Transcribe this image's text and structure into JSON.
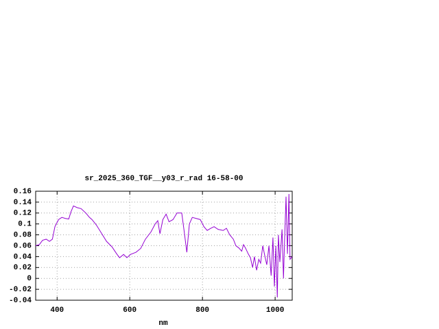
{
  "chart_data": {
    "type": "line",
    "title": "sr_2025_360_TGF__y03_r_rad 16-58-00",
    "x_label": "nm",
    "color": "#9400d3",
    "grid": true,
    "xlim": [
      341,
      1047
    ],
    "ylim": [
      -0.04,
      0.16
    ],
    "xticks": [
      400,
      600,
      800,
      1000
    ],
    "yticks": [
      -0.04,
      -0.02,
      0,
      0.02,
      0.04,
      0.06,
      0.08,
      0.1,
      0.12,
      0.14,
      0.16
    ],
    "x": [
      341,
      351,
      360,
      370,
      379,
      387,
      394,
      404,
      413,
      423,
      432,
      438,
      445,
      455,
      466,
      479,
      489,
      496,
      508,
      523,
      536,
      551,
      564,
      572,
      583,
      592,
      602,
      617,
      630,
      643,
      658,
      670,
      677,
      683,
      691,
      700,
      708,
      719,
      730,
      743,
      749,
      757,
      764,
      772,
      783,
      794,
      804,
      813,
      823,
      832,
      843,
      857,
      866,
      875,
      885,
      892,
      900,
      908,
      913,
      919,
      926,
      932,
      938,
      943,
      949,
      955,
      960,
      966,
      972,
      977,
      983,
      989,
      994,
      998,
      1002,
      1006,
      1009,
      1013,
      1019,
      1023,
      1026,
      1030,
      1034,
      1038,
      1041,
      1047
    ],
    "values": [
      0.06,
      0.062,
      0.07,
      0.072,
      0.068,
      0.072,
      0.095,
      0.108,
      0.112,
      0.11,
      0.109,
      0.122,
      0.133,
      0.13,
      0.128,
      0.12,
      0.112,
      0.108,
      0.098,
      0.082,
      0.068,
      0.058,
      0.045,
      0.038,
      0.044,
      0.038,
      0.044,
      0.048,
      0.055,
      0.072,
      0.085,
      0.1,
      0.106,
      0.082,
      0.108,
      0.118,
      0.104,
      0.108,
      0.12,
      0.12,
      0.09,
      0.048,
      0.1,
      0.112,
      0.11,
      0.108,
      0.095,
      0.088,
      0.092,
      0.095,
      0.09,
      0.088,
      0.092,
      0.08,
      0.072,
      0.06,
      0.056,
      0.05,
      0.062,
      0.055,
      0.045,
      0.038,
      0.02,
      0.04,
      0.015,
      0.035,
      0.028,
      0.06,
      0.04,
      0.025,
      0.06,
      0.005,
      0.075,
      -0.015,
      0.06,
      -0.035,
      0.08,
      0.03,
      0.09,
      0.0,
      0.07,
      0.15,
      0.045,
      0.155,
      0.035,
      0.04
    ]
  }
}
